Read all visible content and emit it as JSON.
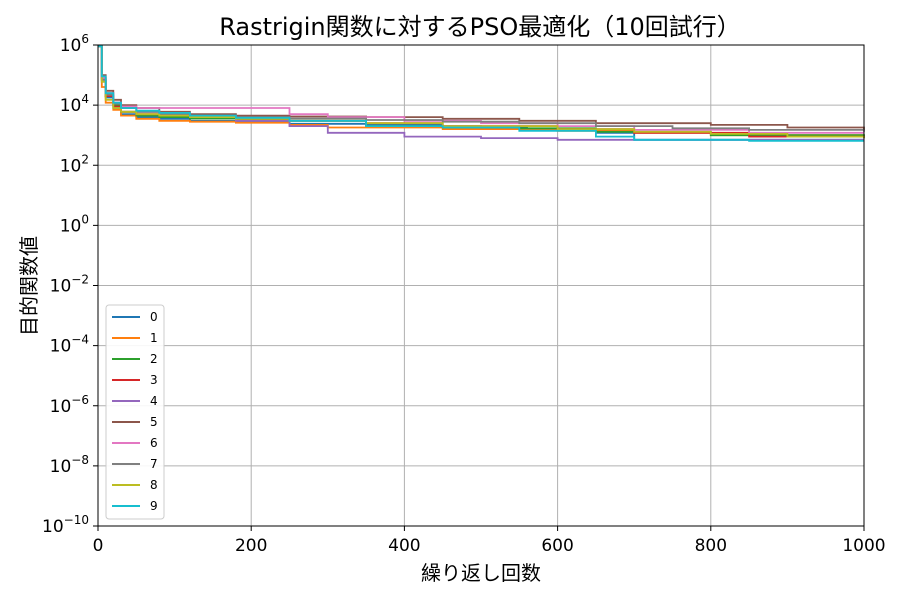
{
  "chart_data": {
    "type": "line",
    "title": "Rastrigin関数に対するPSO最適化（10回試行）",
    "xlabel": "繰り返し回数",
    "ylabel": "目的関数値",
    "xlim": [
      0,
      1000
    ],
    "ylim": [
      1e-10,
      1000000.0
    ],
    "yscale": "log",
    "grid": true,
    "legend_position": "lower-left",
    "x_ticks": [
      "0",
      "200",
      "400",
      "600",
      "800",
      "1000"
    ],
    "x_tick_values": [
      0,
      200,
      400,
      600,
      800,
      1000
    ],
    "y_tick_values": [
      1e-10,
      1e-08,
      1e-06,
      0.0001,
      0.01,
      1.0,
      100.0,
      10000.0,
      1000000.0
    ],
    "y_ticks": [
      {
        "base": "10",
        "exp": "−10"
      },
      {
        "base": "10",
        "exp": "−8"
      },
      {
        "base": "10",
        "exp": "−6"
      },
      {
        "base": "10",
        "exp": "−4"
      },
      {
        "base": "10",
        "exp": "−2"
      },
      {
        "base": "10",
        "exp": "0"
      },
      {
        "base": "10",
        "exp": "2"
      },
      {
        "base": "10",
        "exp": "4"
      },
      {
        "base": "10",
        "exp": "6"
      }
    ],
    "series": [
      {
        "name": "0",
        "color": "#1f77b4",
        "x": [
          0,
          5,
          10,
          20,
          30,
          50,
          80,
          120,
          180,
          250,
          350,
          450,
          500,
          560,
          650,
          700,
          1000
        ],
        "y": [
          900000,
          60000,
          18000,
          8000,
          5000,
          4000,
          3500,
          3000,
          2700,
          2400,
          2200,
          2000,
          1800,
          1500,
          1200,
          700,
          700
        ]
      },
      {
        "name": "1",
        "color": "#ff7f0e",
        "x": [
          0,
          5,
          10,
          20,
          30,
          50,
          80,
          120,
          180,
          250,
          300,
          450,
          600,
          700,
          800,
          900,
          1000
        ],
        "y": [
          900000,
          40000,
          12000,
          7000,
          4500,
          3500,
          3000,
          2800,
          2600,
          2200,
          1800,
          1600,
          1400,
          1200,
          1000,
          1000,
          1000
        ]
      },
      {
        "name": "2",
        "color": "#2ca02c",
        "x": [
          0,
          5,
          10,
          20,
          30,
          50,
          80,
          120,
          180,
          250,
          350,
          450,
          550,
          650,
          800,
          1000
        ],
        "y": [
          900000,
          80000,
          20000,
          10000,
          6000,
          4500,
          4000,
          3600,
          3400,
          3000,
          2000,
          1800,
          1700,
          1300,
          1000,
          900
        ]
      },
      {
        "name": "3",
        "color": "#d62728",
        "x": [
          0,
          5,
          10,
          20,
          30,
          50,
          80,
          120,
          180,
          250,
          350,
          450,
          600,
          700,
          850,
          1000
        ],
        "y": [
          900000,
          70000,
          20000,
          9000,
          6000,
          5000,
          4500,
          4000,
          3500,
          3000,
          2500,
          2000,
          1600,
          1200,
          900,
          800
        ]
      },
      {
        "name": "4",
        "color": "#9467bd",
        "x": [
          0,
          5,
          10,
          20,
          30,
          50,
          80,
          120,
          180,
          250,
          300,
          400,
          500,
          600,
          750,
          900,
          1000
        ],
        "y": [
          900000,
          90000,
          25000,
          12000,
          8000,
          6000,
          5000,
          4000,
          3000,
          2000,
          1200,
          900,
          800,
          700,
          700,
          700,
          700
        ]
      },
      {
        "name": "5",
        "color": "#8c564b",
        "x": [
          0,
          5,
          10,
          20,
          30,
          50,
          80,
          120,
          180,
          250,
          350,
          450,
          550,
          650,
          800,
          900,
          1000
        ],
        "y": [
          900000,
          100000,
          30000,
          15000,
          10000,
          8000,
          6000,
          5000,
          4500,
          4200,
          4000,
          3500,
          3000,
          2500,
          2200,
          1800,
          1500
        ]
      },
      {
        "name": "6",
        "color": "#e377c2",
        "x": [
          0,
          5,
          10,
          20,
          30,
          50,
          80,
          120,
          180,
          250,
          300,
          400,
          500,
          600,
          700,
          850,
          1000
        ],
        "y": [
          900000,
          80000,
          25000,
          12000,
          9000,
          8000,
          8000,
          8000,
          8000,
          5000,
          4000,
          3000,
          2500,
          2000,
          1500,
          1200,
          1200
        ]
      },
      {
        "name": "7",
        "color": "#7f7f7f",
        "x": [
          0,
          5,
          10,
          20,
          30,
          50,
          80,
          120,
          180,
          250,
          350,
          450,
          550,
          650,
          750,
          850,
          1000
        ],
        "y": [
          900000,
          70000,
          22000,
          11000,
          8000,
          6000,
          5000,
          4500,
          4000,
          3600,
          3200,
          2800,
          2500,
          2000,
          1700,
          1500,
          1300
        ]
      },
      {
        "name": "8",
        "color": "#bcbd22",
        "x": [
          0,
          5,
          10,
          20,
          30,
          50,
          80,
          120,
          180,
          250,
          350,
          450,
          600,
          700,
          800,
          900,
          1000
        ],
        "y": [
          900000,
          60000,
          15000,
          8000,
          6000,
          5000,
          4500,
          4000,
          3500,
          3000,
          2500,
          2000,
          1600,
          1300,
          1100,
          900,
          800
        ]
      },
      {
        "name": "9",
        "color": "#17becf",
        "x": [
          0,
          5,
          10,
          20,
          30,
          50,
          80,
          120,
          180,
          250,
          350,
          450,
          550,
          650,
          700,
          850,
          1000
        ],
        "y": [
          900000,
          90000,
          25000,
          12000,
          8000,
          6500,
          5500,
          4500,
          3800,
          3000,
          2000,
          1800,
          1400,
          900,
          700,
          650,
          650
        ]
      }
    ]
  }
}
